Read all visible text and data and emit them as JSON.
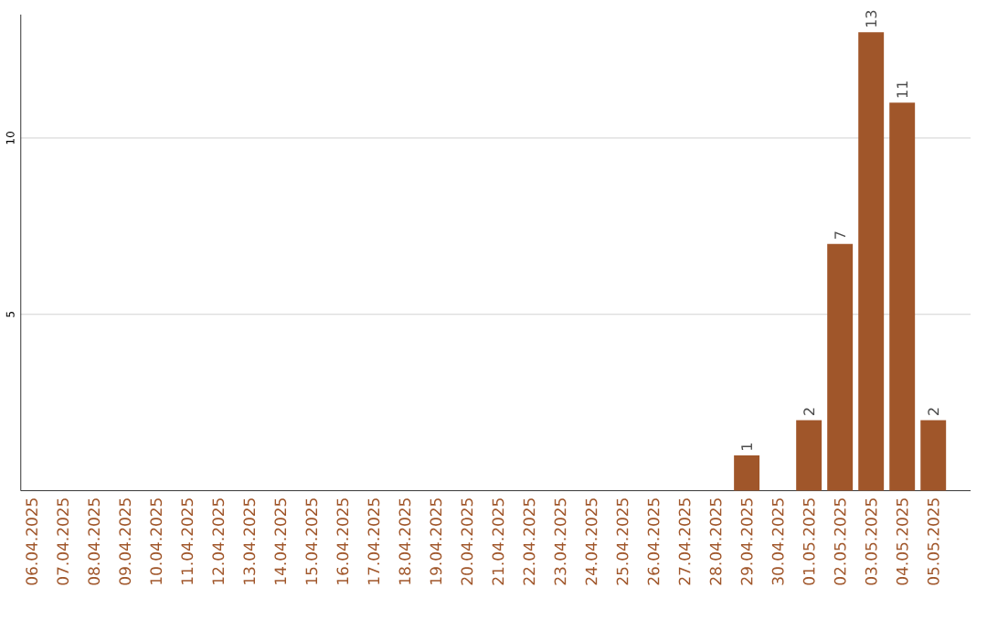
{
  "chart_data": {
    "type": "bar",
    "categories": [
      "06.04.2025",
      "07.04.2025",
      "08.04.2025",
      "09.04.2025",
      "10.04.2025",
      "11.04.2025",
      "12.04.2025",
      "13.04.2025",
      "14.04.2025",
      "15.04.2025",
      "16.04.2025",
      "17.04.2025",
      "18.04.2025",
      "19.04.2025",
      "20.04.2025",
      "21.04.2025",
      "22.04.2025",
      "23.04.2025",
      "24.04.2025",
      "25.04.2025",
      "26.04.2025",
      "27.04.2025",
      "28.04.2025",
      "29.04.2025",
      "30.04.2025",
      "01.05.2025",
      "02.05.2025",
      "03.05.2025",
      "04.05.2025",
      "05.05.2025"
    ],
    "values": [
      0,
      0,
      0,
      0,
      0,
      0,
      0,
      0,
      0,
      0,
      0,
      0,
      0,
      0,
      0,
      0,
      0,
      0,
      0,
      0,
      0,
      0,
      0,
      1,
      0,
      2,
      7,
      13,
      11,
      2
    ],
    "value_labels": [
      null,
      null,
      null,
      null,
      null,
      null,
      null,
      null,
      null,
      null,
      null,
      null,
      null,
      null,
      null,
      null,
      null,
      null,
      null,
      null,
      null,
      null,
      null,
      "1",
      null,
      "2",
      "7",
      "13",
      "11",
      "2"
    ],
    "color": "#a0562a",
    "ylim": [
      0,
      13.5
    ],
    "yticks": [
      5,
      10
    ],
    "grid": "y"
  }
}
